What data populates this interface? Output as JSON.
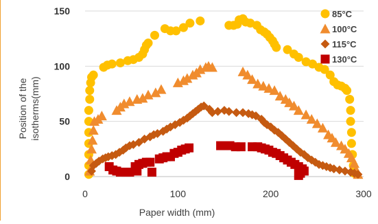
{
  "chart_data": {
    "type": "scatter",
    "title": "",
    "xlabel": "Paper width (mm)",
    "ylabel": "Position of the isotherms(mm)",
    "ylabel_lines": [
      "Position of the",
      "isotherms(mm)"
    ],
    "xlim": [
      0,
      300
    ],
    "ylim": [
      0,
      150
    ],
    "xticks": [
      0,
      100,
      200,
      300
    ],
    "yticks": [
      0,
      50,
      100,
      150
    ],
    "xtick_labels": [
      "0",
      "100",
      "200",
      "300"
    ],
    "ytick_labels": [
      "0",
      "50",
      "100",
      "150"
    ],
    "grid": "horizontal",
    "legend_position": "top-right",
    "series": [
      {
        "name": "85°C",
        "marker": "circle",
        "color": "#ffc000",
        "points": [
          [
            4,
            2
          ],
          [
            4,
            10
          ],
          [
            4,
            20
          ],
          [
            4,
            30
          ],
          [
            4,
            40
          ],
          [
            4,
            50
          ],
          [
            4,
            60
          ],
          [
            5,
            70
          ],
          [
            5,
            78
          ],
          [
            6,
            85
          ],
          [
            7,
            90
          ],
          [
            9,
            92
          ],
          [
            20,
            99
          ],
          [
            24,
            101
          ],
          [
            29,
            102
          ],
          [
            38,
            103
          ],
          [
            46,
            105
          ],
          [
            52,
            106
          ],
          [
            58,
            108
          ],
          [
            62,
            111
          ],
          [
            64,
            115
          ],
          [
            66,
            119
          ],
          [
            68,
            121
          ],
          [
            75,
            128
          ],
          [
            86,
            134
          ],
          [
            92,
            132
          ],
          [
            98,
            132
          ],
          [
            106,
            135
          ],
          [
            113,
            139
          ],
          [
            124,
            141
          ],
          [
            155,
            137
          ],
          [
            160,
            137
          ],
          [
            164,
            138
          ],
          [
            166,
            142
          ],
          [
            170,
            143
          ],
          [
            173,
            140
          ],
          [
            178,
            139
          ],
          [
            185,
            137
          ],
          [
            189,
            133
          ],
          [
            193,
            131
          ],
          [
            196,
            129
          ],
          [
            199,
            126
          ],
          [
            202,
            123
          ],
          [
            204,
            120
          ],
          [
            206,
            117
          ],
          [
            218,
            115
          ],
          [
            225,
            111
          ],
          [
            230,
            108
          ],
          [
            238,
            104
          ],
          [
            245,
            102
          ],
          [
            252,
            99
          ],
          [
            258,
            97
          ],
          [
            264,
            92
          ],
          [
            268,
            86
          ],
          [
            272,
            83
          ],
          [
            276,
            82
          ],
          [
            280,
            80
          ],
          [
            282,
            78
          ],
          [
            285,
            70
          ],
          [
            286,
            60
          ],
          [
            286,
            50
          ],
          [
            287,
            40
          ],
          [
            287,
            30
          ],
          [
            288,
            20
          ],
          [
            289,
            10
          ],
          [
            290,
            3
          ]
        ]
      },
      {
        "name": "100°C",
        "marker": "triangle",
        "color": "#f08c2e",
        "points": [
          [
            5,
            5
          ],
          [
            6,
            15
          ],
          [
            7,
            25
          ],
          [
            8,
            33
          ],
          [
            9,
            42
          ],
          [
            10,
            50
          ],
          [
            14,
            52
          ],
          [
            18,
            55
          ],
          [
            34,
            60
          ],
          [
            38,
            63
          ],
          [
            42,
            66
          ],
          [
            48,
            68
          ],
          [
            56,
            70
          ],
          [
            62,
            71
          ],
          [
            68,
            74
          ],
          [
            76,
            76
          ],
          [
            82,
            79
          ],
          [
            100,
            85
          ],
          [
            106,
            87
          ],
          [
            110,
            89
          ],
          [
            116,
            92
          ],
          [
            120,
            94
          ],
          [
            124,
            97
          ],
          [
            130,
            99
          ],
          [
            133,
            100
          ],
          [
            137,
            99
          ],
          [
            170,
            95
          ],
          [
            175,
            92
          ],
          [
            180,
            88
          ],
          [
            186,
            84
          ],
          [
            192,
            82
          ],
          [
            198,
            80
          ],
          [
            204,
            78
          ],
          [
            210,
            73
          ],
          [
            216,
            70
          ],
          [
            220,
            67
          ],
          [
            225,
            64
          ],
          [
            230,
            60
          ],
          [
            238,
            56
          ],
          [
            244,
            52
          ],
          [
            250,
            48
          ],
          [
            256,
            44
          ],
          [
            262,
            38
          ],
          [
            266,
            35
          ],
          [
            270,
            31
          ],
          [
            276,
            28
          ],
          [
            280,
            25
          ],
          [
            284,
            21
          ],
          [
            287,
            17
          ],
          [
            290,
            12
          ],
          [
            292,
            6
          ],
          [
            294,
            2
          ]
        ]
      },
      {
        "name": "115°C",
        "marker": "diamond",
        "color": "#c55a11",
        "points": [
          [
            7,
            5
          ],
          [
            9,
            10
          ],
          [
            12,
            12
          ],
          [
            15,
            14
          ],
          [
            19,
            16
          ],
          [
            22,
            17
          ],
          [
            25,
            18
          ],
          [
            29,
            19
          ],
          [
            33,
            20
          ],
          [
            37,
            22
          ],
          [
            41,
            24
          ],
          [
            44,
            26
          ],
          [
            48,
            28
          ],
          [
            52,
            29
          ],
          [
            58,
            31
          ],
          [
            64,
            34
          ],
          [
            70,
            36
          ],
          [
            74,
            38
          ],
          [
            78,
            39
          ],
          [
            84,
            41
          ],
          [
            88,
            43
          ],
          [
            92,
            45
          ],
          [
            97,
            47
          ],
          [
            102,
            49
          ],
          [
            106,
            51
          ],
          [
            110,
            53
          ],
          [
            113,
            55
          ],
          [
            116,
            57
          ],
          [
            119,
            59
          ],
          [
            122,
            61
          ],
          [
            125,
            63
          ],
          [
            128,
            64
          ],
          [
            134,
            61
          ],
          [
            137,
            58
          ],
          [
            143,
            59
          ],
          [
            150,
            60
          ],
          [
            155,
            59
          ],
          [
            163,
            58
          ],
          [
            170,
            58
          ],
          [
            176,
            57
          ],
          [
            180,
            56
          ],
          [
            184,
            55
          ],
          [
            190,
            52
          ],
          [
            193,
            49
          ],
          [
            196,
            47
          ],
          [
            200,
            45
          ],
          [
            204,
            42
          ],
          [
            208,
            40
          ],
          [
            212,
            37
          ],
          [
            216,
            34
          ],
          [
            220,
            31
          ],
          [
            224,
            28
          ],
          [
            228,
            25
          ],
          [
            232,
            22
          ],
          [
            236,
            20
          ],
          [
            240,
            17
          ],
          [
            244,
            15
          ],
          [
            248,
            13
          ],
          [
            252,
            11
          ],
          [
            256,
            10
          ],
          [
            260,
            9
          ],
          [
            264,
            8
          ],
          [
            268,
            7
          ],
          [
            274,
            6
          ],
          [
            280,
            5
          ],
          [
            286,
            4
          ],
          [
            290,
            3
          ],
          [
            294,
            2
          ]
        ]
      },
      {
        "name": "130°C",
        "marker": "square",
        "color": "#c00000",
        "points": [
          [
            26,
            9
          ],
          [
            30,
            6
          ],
          [
            34,
            5
          ],
          [
            38,
            4
          ],
          [
            44,
            4
          ],
          [
            48,
            4
          ],
          [
            54,
            9
          ],
          [
            58,
            11
          ],
          [
            62,
            12
          ],
          [
            66,
            13
          ],
          [
            70,
            13
          ],
          [
            56,
            5
          ],
          [
            72,
            4
          ],
          [
            80,
            16
          ],
          [
            84,
            17
          ],
          [
            88,
            18
          ],
          [
            92,
            18
          ],
          [
            96,
            21
          ],
          [
            100,
            22
          ],
          [
            104,
            24
          ],
          [
            108,
            25
          ],
          [
            112,
            26
          ],
          [
            146,
            28
          ],
          [
            150,
            28
          ],
          [
            156,
            28
          ],
          [
            162,
            27
          ],
          [
            168,
            27
          ],
          [
            180,
            27
          ],
          [
            186,
            27
          ],
          [
            190,
            26
          ],
          [
            194,
            25
          ],
          [
            198,
            24
          ],
          [
            202,
            22
          ],
          [
            206,
            21
          ],
          [
            210,
            19
          ],
          [
            214,
            17
          ],
          [
            218,
            15
          ],
          [
            222,
            13
          ],
          [
            226,
            11
          ],
          [
            230,
            9
          ],
          [
            234,
            7
          ],
          [
            236,
            5
          ],
          [
            232,
            3
          ],
          [
            230,
            1
          ]
        ]
      }
    ]
  },
  "colors": {
    "accent_bar": "#f0a030",
    "grid": "#d9d9d9",
    "tick_text": "#333333",
    "label_text": "#404040"
  }
}
